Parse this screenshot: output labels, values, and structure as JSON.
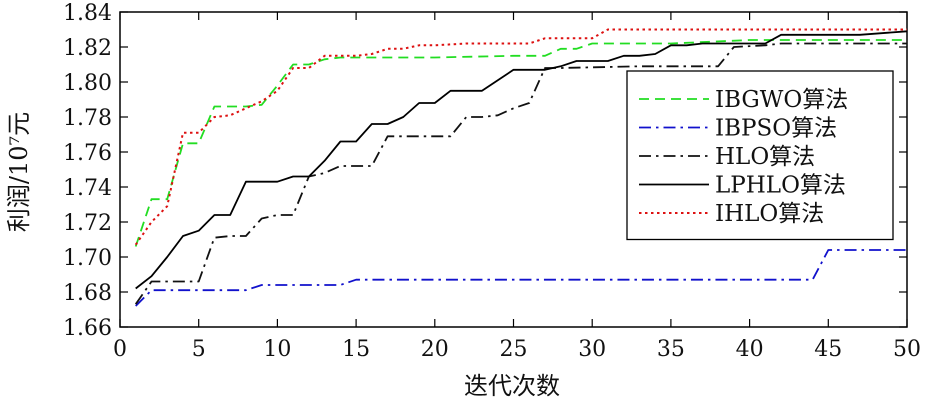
{
  "chart_data": {
    "type": "line",
    "xlabel": "迭代次数",
    "ylabel": "利润/10⁷元",
    "xlim": [
      0,
      50
    ],
    "ylim": [
      1.66,
      1.84
    ],
    "xticks": [
      0,
      5,
      10,
      15,
      20,
      25,
      30,
      35,
      40,
      45,
      50
    ],
    "yticks": [
      1.66,
      1.68,
      1.7,
      1.72,
      1.74,
      1.76,
      1.78,
      1.8,
      1.82,
      1.84
    ],
    "xtick_labels": [
      "0",
      "5",
      "10",
      "15",
      "20",
      "25",
      "30",
      "35",
      "40",
      "45",
      "50"
    ],
    "ytick_labels": [
      "1.66",
      "1.68",
      "1.70",
      "1.72",
      "1.74",
      "1.76",
      "1.78",
      "1.80",
      "1.82",
      "1.84"
    ],
    "grid": false,
    "legend_position": "right",
    "series": [
      {
        "name": "IBGWO算法",
        "color": "#22dd22",
        "dash": "dashed",
        "points": [
          [
            1,
            1.706
          ],
          [
            2,
            1.733
          ],
          [
            3,
            1.733
          ],
          [
            4,
            1.765
          ],
          [
            5,
            1.765
          ],
          [
            6,
            1.786
          ],
          [
            7,
            1.786
          ],
          [
            8,
            1.786
          ],
          [
            9,
            1.787
          ],
          [
            10,
            1.798
          ],
          [
            11,
            1.81
          ],
          [
            12,
            1.81
          ],
          [
            13,
            1.813
          ],
          [
            14,
            1.814
          ],
          [
            15,
            1.814
          ],
          [
            20,
            1.814
          ],
          [
            25,
            1.815
          ],
          [
            26,
            1.815
          ],
          [
            27,
            1.815
          ],
          [
            28,
            1.819
          ],
          [
            29,
            1.819
          ],
          [
            30,
            1.822
          ],
          [
            35,
            1.822
          ],
          [
            40,
            1.824
          ],
          [
            45,
            1.824
          ],
          [
            50,
            1.824
          ]
        ]
      },
      {
        "name": "IBPSO算法",
        "color": "#1111cc",
        "dash": "dashdot",
        "points": [
          [
            1,
            1.672
          ],
          [
            2,
            1.681
          ],
          [
            5,
            1.681
          ],
          [
            8,
            1.681
          ],
          [
            9,
            1.684
          ],
          [
            10,
            1.684
          ],
          [
            14,
            1.684
          ],
          [
            15,
            1.687
          ],
          [
            20,
            1.687
          ],
          [
            30,
            1.687
          ],
          [
            40,
            1.687
          ],
          [
            44,
            1.687
          ],
          [
            45,
            1.704
          ],
          [
            50,
            1.704
          ]
        ]
      },
      {
        "name": "HLO算法",
        "color": "#111111",
        "dash": "dashdot",
        "points": [
          [
            1,
            1.673
          ],
          [
            2,
            1.686
          ],
          [
            4,
            1.686
          ],
          [
            5,
            1.686
          ],
          [
            6,
            1.711
          ],
          [
            7,
            1.712
          ],
          [
            8,
            1.712
          ],
          [
            9,
            1.722
          ],
          [
            10,
            1.724
          ],
          [
            11,
            1.724
          ],
          [
            12,
            1.746
          ],
          [
            13,
            1.748
          ],
          [
            14,
            1.752
          ],
          [
            15,
            1.752
          ],
          [
            16,
            1.752
          ],
          [
            17,
            1.769
          ],
          [
            18,
            1.769
          ],
          [
            20,
            1.769
          ],
          [
            21,
            1.769
          ],
          [
            22,
            1.78
          ],
          [
            23,
            1.78
          ],
          [
            24,
            1.781
          ],
          [
            25,
            1.785
          ],
          [
            26,
            1.788
          ],
          [
            27,
            1.808
          ],
          [
            28,
            1.808
          ],
          [
            33,
            1.809
          ],
          [
            37,
            1.809
          ],
          [
            38,
            1.809
          ],
          [
            39,
            1.82
          ],
          [
            41,
            1.821
          ],
          [
            42,
            1.822
          ],
          [
            45,
            1.822
          ],
          [
            50,
            1.822
          ]
        ]
      },
      {
        "name": "LPHLO算法",
        "color": "#000000",
        "dash": "solid",
        "points": [
          [
            1,
            1.682
          ],
          [
            2,
            1.689
          ],
          [
            3,
            1.7
          ],
          [
            4,
            1.712
          ],
          [
            5,
            1.715
          ],
          [
            6,
            1.724
          ],
          [
            7,
            1.724
          ],
          [
            8,
            1.743
          ],
          [
            9,
            1.743
          ],
          [
            10,
            1.743
          ],
          [
            11,
            1.746
          ],
          [
            12,
            1.746
          ],
          [
            13,
            1.755
          ],
          [
            14,
            1.766
          ],
          [
            15,
            1.766
          ],
          [
            16,
            1.776
          ],
          [
            17,
            1.776
          ],
          [
            18,
            1.78
          ],
          [
            19,
            1.788
          ],
          [
            20,
            1.788
          ],
          [
            21,
            1.795
          ],
          [
            22,
            1.795
          ],
          [
            23,
            1.795
          ],
          [
            24,
            1.801
          ],
          [
            25,
            1.807
          ],
          [
            26,
            1.807
          ],
          [
            27,
            1.807
          ],
          [
            28,
            1.809
          ],
          [
            29,
            1.812
          ],
          [
            30,
            1.812
          ],
          [
            31,
            1.812
          ],
          [
            32,
            1.815
          ],
          [
            33,
            1.815
          ],
          [
            34,
            1.816
          ],
          [
            35,
            1.821
          ],
          [
            36,
            1.821
          ],
          [
            37,
            1.822
          ],
          [
            38,
            1.822
          ],
          [
            39,
            1.822
          ],
          [
            40,
            1.822
          ],
          [
            41,
            1.822
          ],
          [
            42,
            1.827
          ],
          [
            45,
            1.827
          ],
          [
            47,
            1.827
          ],
          [
            50,
            1.829
          ]
        ]
      },
      {
        "name": "IHLO算法",
        "color": "#dd1111",
        "dash": "dotted",
        "points": [
          [
            1,
            1.707
          ],
          [
            2,
            1.72
          ],
          [
            3,
            1.729
          ],
          [
            4,
            1.771
          ],
          [
            5,
            1.771
          ],
          [
            6,
            1.78
          ],
          [
            7,
            1.781
          ],
          [
            8,
            1.785
          ],
          [
            9,
            1.789
          ],
          [
            10,
            1.795
          ],
          [
            11,
            1.808
          ],
          [
            12,
            1.808
          ],
          [
            13,
            1.815
          ],
          [
            14,
            1.815
          ],
          [
            15,
            1.815
          ],
          [
            16,
            1.816
          ],
          [
            17,
            1.819
          ],
          [
            18,
            1.819
          ],
          [
            19,
            1.821
          ],
          [
            20,
            1.821
          ],
          [
            22,
            1.822
          ],
          [
            25,
            1.822
          ],
          [
            26,
            1.822
          ],
          [
            27,
            1.825
          ],
          [
            28,
            1.825
          ],
          [
            30,
            1.825
          ],
          [
            31,
            1.83
          ],
          [
            35,
            1.83
          ],
          [
            40,
            1.83
          ],
          [
            45,
            1.83
          ],
          [
            50,
            1.83
          ]
        ]
      }
    ]
  }
}
